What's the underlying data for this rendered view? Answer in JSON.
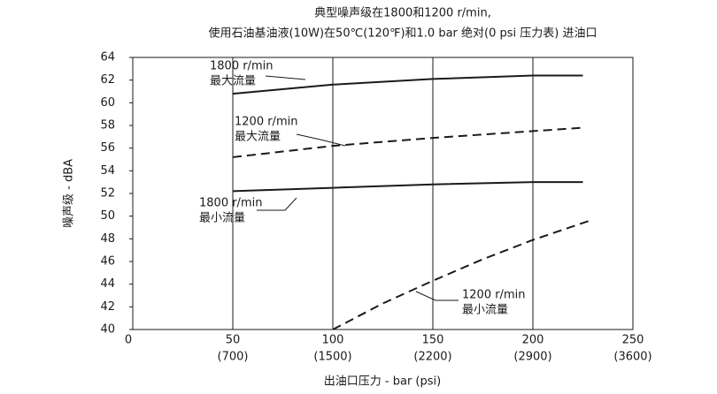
{
  "chart_data": {
    "type": "line",
    "title": "典型噪声级在1800和1200 r/min,",
    "subtitle": "使用石油基油液(10W)在50℃(120℉)和1.0 bar 绝对(0 psi 压力表) 进油口",
    "x_label": "出油口压力 - bar (psi)",
    "y_label": "噪声级 - dBA",
    "xlim": [
      0,
      250
    ],
    "xticks": [
      0,
      50,
      100,
      150,
      200,
      250
    ],
    "x_secondary_labels": [
      null,
      "(700)",
      "(1500)",
      "(2200)",
      "(2900)",
      "(3600)"
    ],
    "ylim": [
      40,
      64
    ],
    "yticks": [
      40,
      42,
      44,
      46,
      48,
      50,
      52,
      54,
      56,
      58,
      60,
      62,
      64
    ],
    "grid": true,
    "series": [
      {
        "name": "1800 r/min 最大流量",
        "color": "#1a1a1a",
        "style": "solid",
        "x": [
          50,
          100,
          150,
          200,
          225
        ],
        "values": [
          60.8,
          61.6,
          62.1,
          62.4,
          62.4
        ]
      },
      {
        "name": "1200 r/min 最大流量",
        "color": "#1a1a1a",
        "style": "dashed",
        "x": [
          50,
          100,
          150,
          200,
          225
        ],
        "values": [
          55.2,
          56.2,
          56.9,
          57.5,
          57.8
        ]
      },
      {
        "name": "1800 r/min 最小流量",
        "color": "#1a1a1a",
        "style": "solid",
        "x": [
          50,
          100,
          150,
          200,
          225
        ],
        "values": [
          52.2,
          52.5,
          52.8,
          53.0,
          53.0
        ]
      },
      {
        "name": "1200 r/min 最小流量",
        "color": "#1a1a1a",
        "style": "dashed",
        "x": [
          100,
          125,
          150,
          175,
          200,
          230
        ],
        "values": [
          40,
          42.3,
          44.3,
          46.2,
          47.9,
          49.7
        ]
      }
    ],
    "annotations": [
      {
        "line1": "1800 r/min",
        "line2": "最大流量"
      },
      {
        "line1": "1200 r/min",
        "line2": "最大流量"
      },
      {
        "line1": "1800 r/min",
        "line2": "最小流量"
      },
      {
        "line1": "1200 r/min",
        "line2": "最小流量"
      }
    ]
  }
}
